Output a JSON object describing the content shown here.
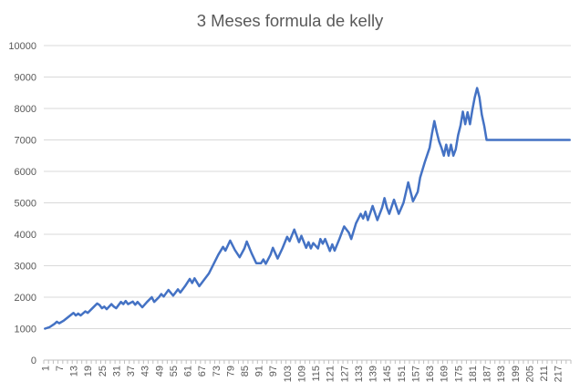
{
  "chart_data": {
    "type": "line",
    "title": "3 Meses formula de kelly",
    "xlabel": "",
    "ylabel": "",
    "ylim": [
      0,
      10000
    ],
    "yticks": [
      0,
      1000,
      2000,
      3000,
      4000,
      5000,
      6000,
      7000,
      8000,
      9000,
      10000
    ],
    "x_tick_labels": [
      1,
      7,
      13,
      19,
      25,
      31,
      37,
      43,
      49,
      55,
      61,
      67,
      73,
      79,
      85,
      91,
      97,
      103,
      109,
      115,
      121,
      127,
      133,
      139,
      145,
      151,
      157,
      163,
      169,
      175,
      181,
      187,
      193,
      199,
      205,
      211,
      217
    ],
    "x_range": [
      1,
      222
    ],
    "grid": "horizontal",
    "legend": "none",
    "colors": {
      "series": "#4472C4",
      "grid": "#D9D9D9",
      "axis": "#BFBFBF",
      "text": "#595959"
    },
    "series": [
      {
        "points": [
          [
            1,
            1000
          ],
          [
            3,
            1050
          ],
          [
            5,
            1150
          ],
          [
            6,
            1220
          ],
          [
            7,
            1170
          ],
          [
            9,
            1260
          ],
          [
            11,
            1380
          ],
          [
            13,
            1500
          ],
          [
            14,
            1420
          ],
          [
            15,
            1480
          ],
          [
            16,
            1420
          ],
          [
            18,
            1550
          ],
          [
            19,
            1500
          ],
          [
            21,
            1650
          ],
          [
            23,
            1800
          ],
          [
            24,
            1750
          ],
          [
            25,
            1650
          ],
          [
            26,
            1700
          ],
          [
            27,
            1620
          ],
          [
            29,
            1780
          ],
          [
            30,
            1700
          ],
          [
            31,
            1650
          ],
          [
            33,
            1850
          ],
          [
            34,
            1780
          ],
          [
            35,
            1880
          ],
          [
            36,
            1780
          ],
          [
            38,
            1860
          ],
          [
            39,
            1760
          ],
          [
            40,
            1850
          ],
          [
            42,
            1680
          ],
          [
            44,
            1850
          ],
          [
            46,
            2000
          ],
          [
            47,
            1850
          ],
          [
            49,
            2000
          ],
          [
            50,
            2100
          ],
          [
            51,
            2020
          ],
          [
            53,
            2230
          ],
          [
            55,
            2050
          ],
          [
            56,
            2150
          ],
          [
            57,
            2250
          ],
          [
            58,
            2150
          ],
          [
            60,
            2350
          ],
          [
            62,
            2580
          ],
          [
            63,
            2450
          ],
          [
            64,
            2600
          ],
          [
            66,
            2350
          ],
          [
            68,
            2550
          ],
          [
            70,
            2750
          ],
          [
            72,
            3050
          ],
          [
            74,
            3350
          ],
          [
            76,
            3600
          ],
          [
            77,
            3480
          ],
          [
            79,
            3800
          ],
          [
            81,
            3500
          ],
          [
            83,
            3270
          ],
          [
            85,
            3550
          ],
          [
            86,
            3770
          ],
          [
            88,
            3400
          ],
          [
            90,
            3080
          ],
          [
            92,
            3080
          ],
          [
            93,
            3200
          ],
          [
            94,
            3060
          ],
          [
            96,
            3350
          ],
          [
            97,
            3570
          ],
          [
            99,
            3230
          ],
          [
            101,
            3550
          ],
          [
            103,
            3920
          ],
          [
            104,
            3780
          ],
          [
            106,
            4150
          ],
          [
            108,
            3750
          ],
          [
            109,
            3950
          ],
          [
            111,
            3570
          ],
          [
            112,
            3750
          ],
          [
            113,
            3550
          ],
          [
            114,
            3720
          ],
          [
            116,
            3550
          ],
          [
            117,
            3850
          ],
          [
            118,
            3700
          ],
          [
            119,
            3850
          ],
          [
            121,
            3470
          ],
          [
            122,
            3680
          ],
          [
            123,
            3480
          ],
          [
            125,
            3850
          ],
          [
            127,
            4250
          ],
          [
            129,
            4050
          ],
          [
            130,
            3850
          ],
          [
            132,
            4350
          ],
          [
            134,
            4650
          ],
          [
            135,
            4500
          ],
          [
            136,
            4720
          ],
          [
            137,
            4450
          ],
          [
            139,
            4900
          ],
          [
            141,
            4450
          ],
          [
            143,
            4850
          ],
          [
            144,
            5150
          ],
          [
            145,
            4850
          ],
          [
            146,
            4650
          ],
          [
            148,
            5100
          ],
          [
            150,
            4650
          ],
          [
            152,
            5000
          ],
          [
            154,
            5650
          ],
          [
            156,
            5050
          ],
          [
            158,
            5350
          ],
          [
            159,
            5800
          ],
          [
            161,
            6300
          ],
          [
            163,
            6750
          ],
          [
            164,
            7200
          ],
          [
            165,
            7600
          ],
          [
            166,
            7250
          ],
          [
            167,
            6950
          ],
          [
            168,
            6750
          ],
          [
            169,
            6500
          ],
          [
            170,
            6850
          ],
          [
            171,
            6500
          ],
          [
            172,
            6850
          ],
          [
            173,
            6500
          ],
          [
            174,
            6700
          ],
          [
            175,
            7150
          ],
          [
            176,
            7450
          ],
          [
            177,
            7900
          ],
          [
            178,
            7500
          ],
          [
            179,
            7880
          ],
          [
            180,
            7500
          ],
          [
            181,
            7950
          ],
          [
            182,
            8350
          ],
          [
            183,
            8650
          ],
          [
            184,
            8350
          ],
          [
            185,
            7800
          ],
          [
            186,
            7450
          ],
          [
            187,
            7000
          ],
          [
            222,
            7000
          ]
        ]
      }
    ]
  }
}
